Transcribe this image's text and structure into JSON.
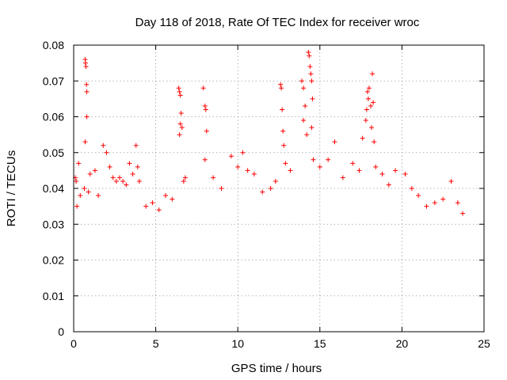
{
  "chart_data": {
    "type": "scatter",
    "title": "Day 118 of 2018, Rate Of TEC Index for receiver wroc",
    "xlabel": "GPS time / hours",
    "ylabel": "ROTI / TECUs",
    "xlim": [
      0,
      25
    ],
    "ylim": [
      0,
      0.08
    ],
    "x_ticks": [
      0,
      5,
      10,
      15,
      20,
      25
    ],
    "y_ticks": [
      0,
      0.01,
      0.02,
      0.03,
      0.04,
      0.05,
      0.06,
      0.07,
      0.08
    ],
    "x_tick_labels": [
      "0",
      "5",
      "10",
      "15",
      "20",
      "25"
    ],
    "y_tick_labels": [
      "0",
      "0.01",
      "0.02",
      "0.03",
      "0.04",
      "0.05",
      "0.06",
      "0.07",
      "0.08"
    ],
    "grid": true,
    "marker": "+",
    "color": "#ff0000",
    "series": [
      {
        "name": "ROTI",
        "points": [
          [
            0.1,
            0.043
          ],
          [
            0.15,
            0.042
          ],
          [
            0.2,
            0.035
          ],
          [
            0.3,
            0.047
          ],
          [
            0.4,
            0.038
          ],
          [
            0.7,
            0.076
          ],
          [
            0.72,
            0.075
          ],
          [
            0.75,
            0.074
          ],
          [
            0.78,
            0.069
          ],
          [
            0.8,
            0.067
          ],
          [
            0.8,
            0.06
          ],
          [
            0.7,
            0.053
          ],
          [
            0.65,
            0.04
          ],
          [
            0.9,
            0.039
          ],
          [
            1.0,
            0.044
          ],
          [
            1.3,
            0.045
          ],
          [
            1.5,
            0.038
          ],
          [
            1.8,
            0.052
          ],
          [
            2.0,
            0.05
          ],
          [
            2.2,
            0.046
          ],
          [
            2.4,
            0.043
          ],
          [
            2.6,
            0.042
          ],
          [
            2.8,
            0.043
          ],
          [
            3.0,
            0.042
          ],
          [
            3.2,
            0.041
          ],
          [
            3.4,
            0.047
          ],
          [
            3.6,
            0.044
          ],
          [
            3.8,
            0.052
          ],
          [
            3.9,
            0.046
          ],
          [
            4.0,
            0.042
          ],
          [
            4.4,
            0.035
          ],
          [
            4.8,
            0.036
          ],
          [
            5.2,
            0.034
          ],
          [
            5.6,
            0.038
          ],
          [
            6.0,
            0.037
          ],
          [
            6.4,
            0.068
          ],
          [
            6.45,
            0.067
          ],
          [
            6.5,
            0.066
          ],
          [
            6.55,
            0.061
          ],
          [
            6.5,
            0.058
          ],
          [
            6.6,
            0.057
          ],
          [
            6.45,
            0.055
          ],
          [
            6.7,
            0.042
          ],
          [
            6.8,
            0.043
          ],
          [
            7.9,
            0.068
          ],
          [
            8.0,
            0.063
          ],
          [
            8.05,
            0.062
          ],
          [
            8.1,
            0.056
          ],
          [
            8.0,
            0.048
          ],
          [
            8.5,
            0.043
          ],
          [
            9.0,
            0.04
          ],
          [
            9.6,
            0.049
          ],
          [
            10.0,
            0.046
          ],
          [
            10.3,
            0.05
          ],
          [
            10.6,
            0.045
          ],
          [
            11.0,
            0.044
          ],
          [
            11.5,
            0.039
          ],
          [
            12.0,
            0.04
          ],
          [
            12.3,
            0.042
          ],
          [
            12.6,
            0.069
          ],
          [
            12.65,
            0.068
          ],
          [
            12.7,
            0.062
          ],
          [
            12.75,
            0.056
          ],
          [
            12.8,
            0.052
          ],
          [
            12.9,
            0.047
          ],
          [
            13.2,
            0.045
          ],
          [
            13.9,
            0.07
          ],
          [
            14.0,
            0.068
          ],
          [
            14.1,
            0.063
          ],
          [
            14.0,
            0.059
          ],
          [
            14.2,
            0.055
          ],
          [
            14.3,
            0.078
          ],
          [
            14.35,
            0.077
          ],
          [
            14.4,
            0.074
          ],
          [
            14.45,
            0.072
          ],
          [
            14.5,
            0.07
          ],
          [
            14.55,
            0.065
          ],
          [
            14.5,
            0.057
          ],
          [
            14.6,
            0.048
          ],
          [
            15.0,
            0.046
          ],
          [
            15.5,
            0.048
          ],
          [
            15.9,
            0.053
          ],
          [
            16.4,
            0.043
          ],
          [
            17.0,
            0.047
          ],
          [
            17.4,
            0.045
          ],
          [
            17.6,
            0.054
          ],
          [
            17.8,
            0.059
          ],
          [
            17.85,
            0.062
          ],
          [
            17.9,
            0.067
          ],
          [
            17.95,
            0.065
          ],
          [
            18.0,
            0.068
          ],
          [
            18.1,
            0.063
          ],
          [
            18.15,
            0.057
          ],
          [
            18.2,
            0.072
          ],
          [
            18.25,
            0.064
          ],
          [
            18.3,
            0.053
          ],
          [
            18.4,
            0.046
          ],
          [
            18.8,
            0.044
          ],
          [
            19.2,
            0.041
          ],
          [
            19.6,
            0.045
          ],
          [
            20.2,
            0.044
          ],
          [
            20.6,
            0.04
          ],
          [
            21.0,
            0.038
          ],
          [
            21.5,
            0.035
          ],
          [
            22.0,
            0.036
          ],
          [
            22.5,
            0.037
          ],
          [
            23.0,
            0.042
          ],
          [
            23.4,
            0.036
          ],
          [
            23.7,
            0.033
          ]
        ]
      }
    ]
  }
}
